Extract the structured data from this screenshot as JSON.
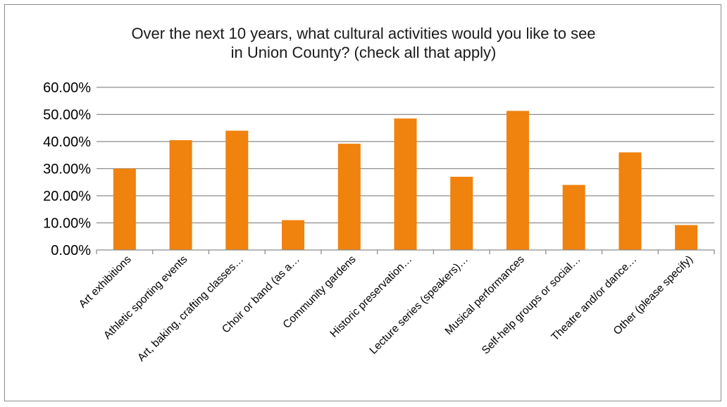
{
  "chart_data": {
    "type": "bar",
    "title_lines": [
      "Over the next 10 years, what cultural activities would you like to see",
      "in Union County? (check all that apply)"
    ],
    "categories": [
      "Art exhibitions",
      "Athletic sporting events",
      "Art, baking, crafting classes…",
      "Choir or band (as a…",
      "Community gardens",
      "Historic preservation…",
      "Lecture series (speakers)…",
      "Musical performances",
      "Self-help groups or social…",
      "Theatre and/or dance…",
      "Other (please specify)"
    ],
    "values": [
      30.0,
      40.5,
      44.0,
      11.0,
      39.2,
      48.5,
      27.0,
      51.3,
      24.0,
      36.0,
      9.2
    ],
    "ylim": [
      0,
      60
    ],
    "yticks": [
      0,
      10,
      20,
      30,
      40,
      50,
      60
    ],
    "ytick_labels": [
      "0.00%",
      "10.00%",
      "20.00%",
      "30.00%",
      "40.00%",
      "50.00%",
      "60.00%"
    ],
    "grid": true,
    "legend": "none",
    "colors": {
      "bar": "#f0820e",
      "grid": "#8c8c8c",
      "axis": "#8c8c8c"
    }
  }
}
